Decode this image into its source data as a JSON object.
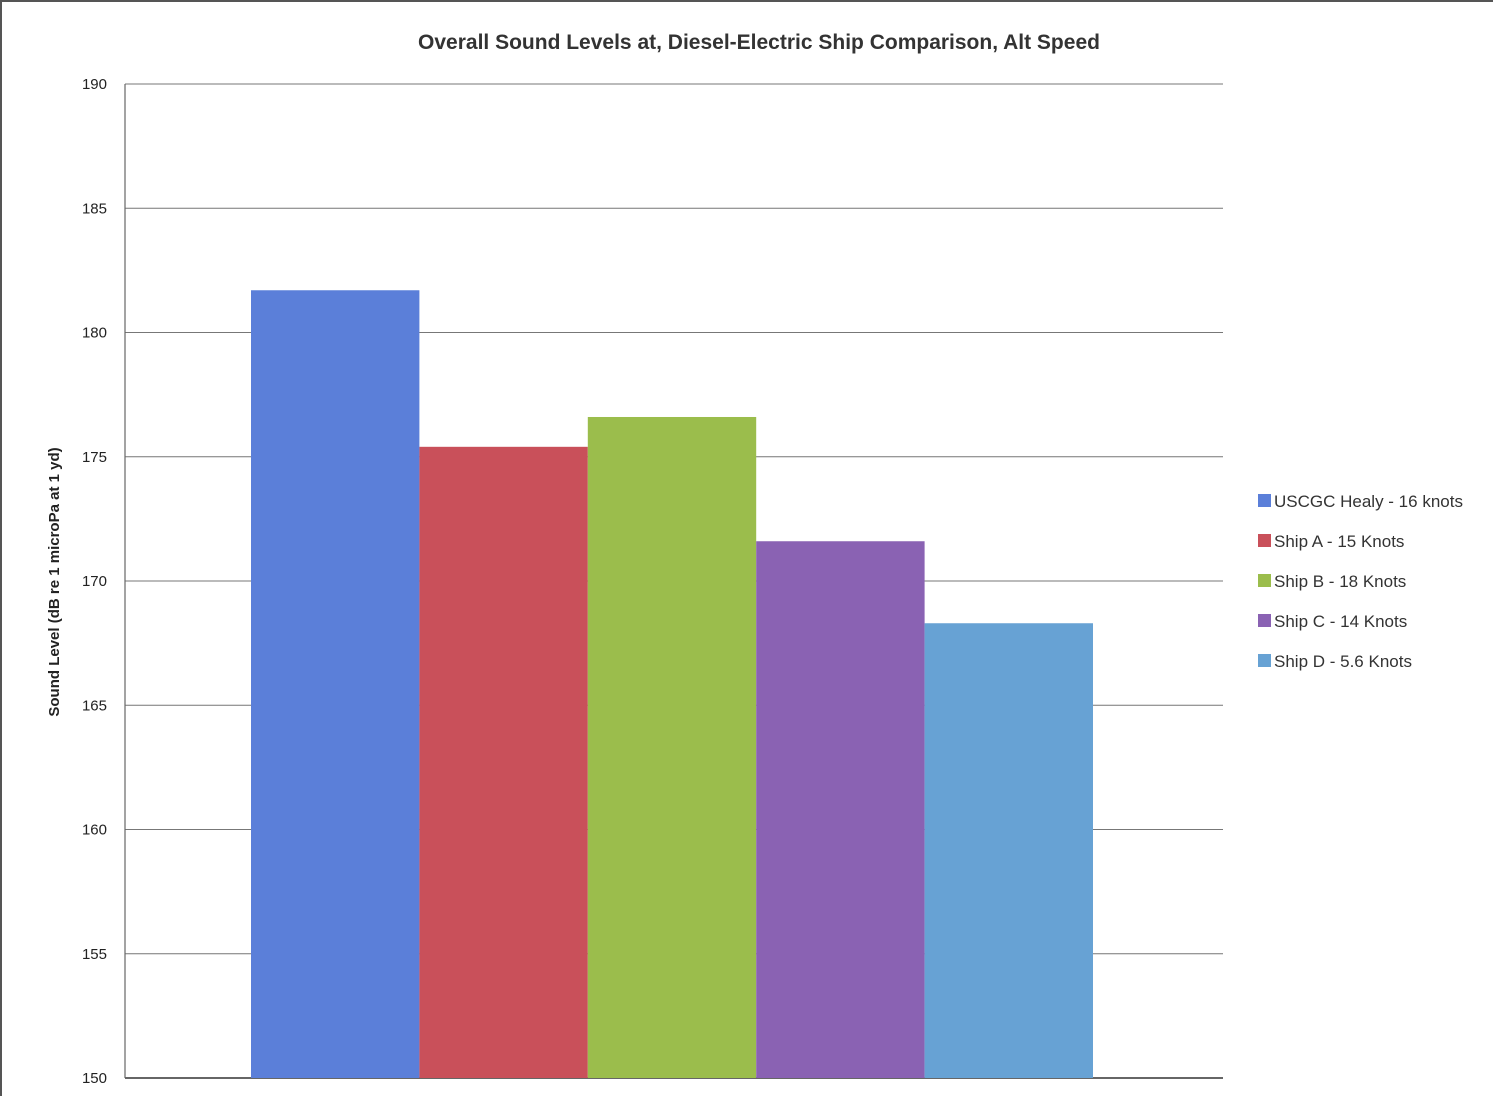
{
  "chart_data": {
    "type": "bar",
    "title": "Overall Sound Levels at, Diesel-Electric Ship Comparison,  Alt Speed",
    "xlabel": "",
    "ylabel": "Sound Level (dB re 1 microPa at 1 yd)",
    "ylim": [
      150,
      190
    ],
    "ytick_step": 5,
    "grid": true,
    "legend_position": "right",
    "series": [
      {
        "name": "USCGC Healy - 16 knots",
        "value": 181.7,
        "color": "#5b7fd9"
      },
      {
        "name": "Ship A - 15 Knots",
        "value": 175.4,
        "color": "#c9505a"
      },
      {
        "name": "Ship B - 18 Knots",
        "value": 176.6,
        "color": "#9bbd4c"
      },
      {
        "name": "Ship C - 14 Knots",
        "value": 171.6,
        "color": "#8a62b3"
      },
      {
        "name": "Ship D - 5.6 Knots",
        "value": 168.3,
        "color": "#67a2d4"
      }
    ]
  }
}
